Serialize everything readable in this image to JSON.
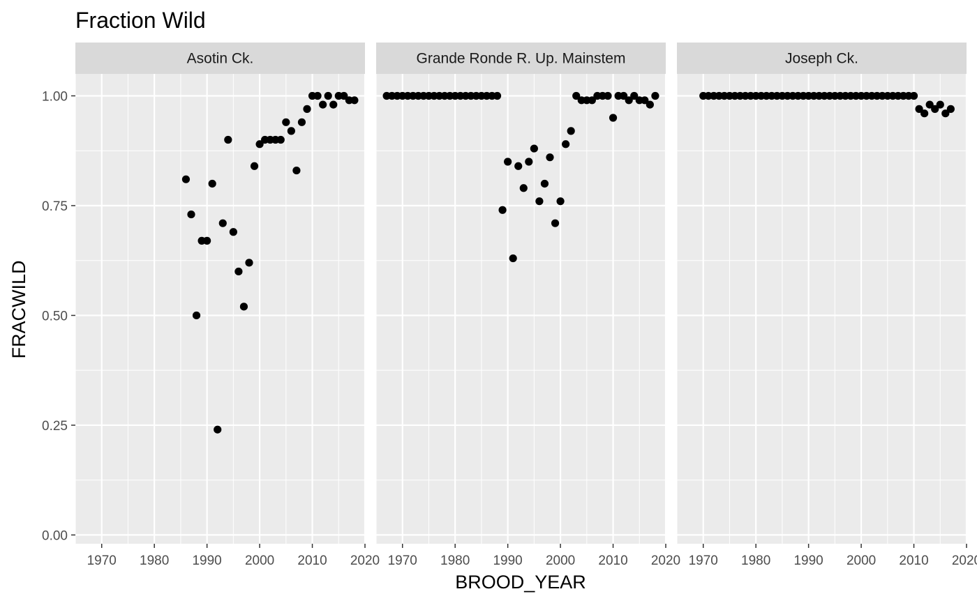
{
  "chart_data": {
    "type": "scatter",
    "title": "Fraction Wild",
    "xlabel": "BROOD_YEAR",
    "ylabel": "FRACWILD",
    "xlim": [
      1965,
      2020
    ],
    "ylim": [
      -0.02,
      1.05
    ],
    "x_ticks": [
      1970,
      1980,
      1990,
      2000,
      2010,
      2020
    ],
    "y_ticks": [
      0.0,
      0.25,
      0.5,
      0.75,
      1.0
    ],
    "y_tick_labels": [
      "0.00",
      "0.25",
      "0.50",
      "0.75",
      "1.00"
    ],
    "grid": true,
    "colors": {
      "panel_bg": "#ebebeb",
      "grid": "#ffffff",
      "strip_bg": "#d9d9d9",
      "point": "#000000"
    },
    "facets": [
      {
        "label": "Asotin Ck.",
        "points": [
          [
            1986,
            0.81
          ],
          [
            1987,
            0.73
          ],
          [
            1988,
            0.5
          ],
          [
            1989,
            0.67
          ],
          [
            1990,
            0.67
          ],
          [
            1991,
            0.8
          ],
          [
            1992,
            0.24
          ],
          [
            1993,
            0.71
          ],
          [
            1994,
            0.9
          ],
          [
            1995,
            0.69
          ],
          [
            1996,
            0.6
          ],
          [
            1997,
            0.52
          ],
          [
            1998,
            0.62
          ],
          [
            1999,
            0.84
          ],
          [
            2000,
            0.89
          ],
          [
            2001,
            0.9
          ],
          [
            2002,
            0.9
          ],
          [
            2003,
            0.9
          ],
          [
            2004,
            0.9
          ],
          [
            2005,
            0.94
          ],
          [
            2006,
            0.92
          ],
          [
            2007,
            0.83
          ],
          [
            2008,
            0.94
          ],
          [
            2009,
            0.97
          ],
          [
            2010,
            1.0
          ],
          [
            2011,
            1.0
          ],
          [
            2012,
            0.98
          ],
          [
            2013,
            1.0
          ],
          [
            2014,
            0.98
          ],
          [
            2015,
            1.0
          ],
          [
            2016,
            1.0
          ],
          [
            2017,
            0.99
          ],
          [
            2018,
            0.99
          ]
        ]
      },
      {
        "label": "Grande Ronde R. Up. Mainstem",
        "points": [
          [
            1967,
            1.0
          ],
          [
            1968,
            1.0
          ],
          [
            1969,
            1.0
          ],
          [
            1970,
            1.0
          ],
          [
            1971,
            1.0
          ],
          [
            1972,
            1.0
          ],
          [
            1973,
            1.0
          ],
          [
            1974,
            1.0
          ],
          [
            1975,
            1.0
          ],
          [
            1976,
            1.0
          ],
          [
            1977,
            1.0
          ],
          [
            1978,
            1.0
          ],
          [
            1979,
            1.0
          ],
          [
            1980,
            1.0
          ],
          [
            1981,
            1.0
          ],
          [
            1982,
            1.0
          ],
          [
            1983,
            1.0
          ],
          [
            1984,
            1.0
          ],
          [
            1985,
            1.0
          ],
          [
            1986,
            1.0
          ],
          [
            1987,
            1.0
          ],
          [
            1988,
            1.0
          ],
          [
            1989,
            0.74
          ],
          [
            1990,
            0.85
          ],
          [
            1991,
            0.63
          ],
          [
            1992,
            0.84
          ],
          [
            1993,
            0.79
          ],
          [
            1994,
            0.85
          ],
          [
            1995,
            0.88
          ],
          [
            1996,
            0.76
          ],
          [
            1997,
            0.8
          ],
          [
            1998,
            0.86
          ],
          [
            1999,
            0.71
          ],
          [
            2000,
            0.76
          ],
          [
            2001,
            0.89
          ],
          [
            2002,
            0.92
          ],
          [
            2003,
            1.0
          ],
          [
            2004,
            0.99
          ],
          [
            2005,
            0.99
          ],
          [
            2006,
            0.99
          ],
          [
            2007,
            1.0
          ],
          [
            2008,
            1.0
          ],
          [
            2009,
            1.0
          ],
          [
            2010,
            0.95
          ],
          [
            2011,
            1.0
          ],
          [
            2012,
            1.0
          ],
          [
            2013,
            0.99
          ],
          [
            2014,
            1.0
          ],
          [
            2015,
            0.99
          ],
          [
            2016,
            0.99
          ],
          [
            2017,
            0.98
          ],
          [
            2018,
            1.0
          ]
        ]
      },
      {
        "label": "Joseph Ck.",
        "points": [
          [
            1970,
            1.0
          ],
          [
            1971,
            1.0
          ],
          [
            1972,
            1.0
          ],
          [
            1973,
            1.0
          ],
          [
            1974,
            1.0
          ],
          [
            1975,
            1.0
          ],
          [
            1976,
            1.0
          ],
          [
            1977,
            1.0
          ],
          [
            1978,
            1.0
          ],
          [
            1979,
            1.0
          ],
          [
            1980,
            1.0
          ],
          [
            1981,
            1.0
          ],
          [
            1982,
            1.0
          ],
          [
            1983,
            1.0
          ],
          [
            1984,
            1.0
          ],
          [
            1985,
            1.0
          ],
          [
            1986,
            1.0
          ],
          [
            1987,
            1.0
          ],
          [
            1988,
            1.0
          ],
          [
            1989,
            1.0
          ],
          [
            1990,
            1.0
          ],
          [
            1991,
            1.0
          ],
          [
            1992,
            1.0
          ],
          [
            1993,
            1.0
          ],
          [
            1994,
            1.0
          ],
          [
            1995,
            1.0
          ],
          [
            1996,
            1.0
          ],
          [
            1997,
            1.0
          ],
          [
            1998,
            1.0
          ],
          [
            1999,
            1.0
          ],
          [
            2000,
            1.0
          ],
          [
            2001,
            1.0
          ],
          [
            2002,
            1.0
          ],
          [
            2003,
            1.0
          ],
          [
            2004,
            1.0
          ],
          [
            2005,
            1.0
          ],
          [
            2006,
            1.0
          ],
          [
            2007,
            1.0
          ],
          [
            2008,
            1.0
          ],
          [
            2009,
            1.0
          ],
          [
            2010,
            1.0
          ],
          [
            2011,
            0.97
          ],
          [
            2012,
            0.96
          ],
          [
            2013,
            0.98
          ],
          [
            2014,
            0.97
          ],
          [
            2015,
            0.98
          ],
          [
            2016,
            0.96
          ],
          [
            2017,
            0.97
          ]
        ]
      }
    ]
  }
}
